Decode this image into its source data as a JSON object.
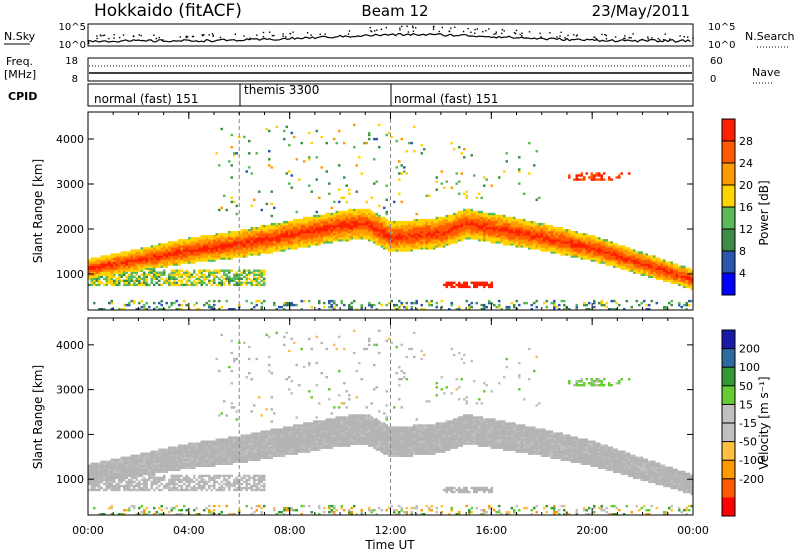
{
  "header": {
    "title": "Hokkaido (fitACF)",
    "beam": "Beam 12",
    "date": "23/May/2011"
  },
  "summary_panels": {
    "nsky": {
      "left_label": "N.Sky",
      "right_label": "N.Search",
      "ticks": [
        "10^5",
        "10^0"
      ]
    },
    "freq": {
      "left_label_1": "Freq.",
      "left_label_2": "[MHz]",
      "left_ticks": [
        "18",
        "8"
      ],
      "right_label": "Nave",
      "right_ticks": [
        "60",
        "0"
      ]
    },
    "cpid": {
      "label": "CPID",
      "modes": [
        {
          "label": "normal (fast) 151",
          "start_hour": 0,
          "end_hour": 6
        },
        {
          "label": "themis 3300",
          "start_hour": 6,
          "end_hour": 12
        },
        {
          "label": "normal (fast) 151",
          "start_hour": 12,
          "end_hour": 24
        }
      ]
    }
  },
  "colors": {
    "power": [
      "#0000ff",
      "#2b57b0",
      "#3c8c46",
      "#5aba5a",
      "#ffd400",
      "#ff9a00",
      "#ff5a00",
      "#ff1e00"
    ],
    "velocity": [
      "#ff0000",
      "#ff5a00",
      "#ff9900",
      "#ffbf40",
      "#c0c0c0",
      "#c0c0c0",
      "#66cc33",
      "#339933",
      "#2d6aa0",
      "#1a1aa8"
    ],
    "gs": "#b4b4b4"
  },
  "chart_data": [
    {
      "type": "heatmap",
      "name": "power",
      "ylabel": "Slant Range [km]",
      "xlabel": "",
      "xlim": [
        0,
        24
      ],
      "ylim": [
        200,
        4600
      ],
      "yticks": [
        1000,
        2000,
        3000,
        4000
      ],
      "colorbar_label": "Power [dB]",
      "colorbar_ticks": [
        "28",
        "24",
        "20",
        "16",
        "12",
        "8",
        "4"
      ],
      "colorbar_range": [
        0,
        32
      ]
    },
    {
      "type": "heatmap",
      "name": "velocity",
      "ylabel": "Slant Range [km]",
      "xlabel": "Time UT",
      "xlim": [
        0,
        24
      ],
      "ylim": [
        200,
        4600
      ],
      "yticks": [
        1000,
        2000,
        3000,
        4000
      ],
      "xtick_labels": [
        "00:00",
        "04:00",
        "08:00",
        "12:00",
        "16:00",
        "20:00",
        "00:00"
      ],
      "colorbar_label": "Velocity [m s⁻¹]",
      "colorbar_ticks": [
        "200",
        "100",
        "50",
        "15",
        "-15",
        "-50",
        "-100",
        "-200"
      ],
      "colorbar_range": [
        -250,
        250
      ]
    }
  ]
}
